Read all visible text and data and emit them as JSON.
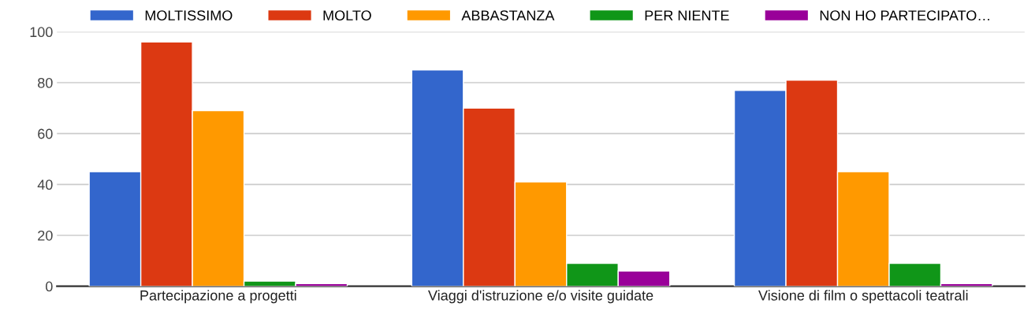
{
  "chart_data": {
    "type": "bar",
    "categories": [
      "Partecipazione a progetti",
      "Viaggi d'istruzione e/o visite guidate",
      "Visione di film o spettacoli teatrali"
    ],
    "series": [
      {
        "name": "MOLTISSIMO",
        "color": "#3366cc",
        "values": [
          45,
          85,
          77
        ]
      },
      {
        "name": "MOLTO",
        "color": "#dc3912",
        "values": [
          96,
          70,
          81
        ]
      },
      {
        "name": "ABBASTANZA",
        "color": "#ff9900",
        "values": [
          69,
          41,
          45
        ]
      },
      {
        "name": "PER NIENTE",
        "color": "#109618",
        "values": [
          2,
          9,
          9
        ]
      },
      {
        "name": "NON HO PARTECIPATO…",
        "color": "#990099",
        "values": [
          1,
          6,
          1
        ]
      }
    ],
    "ylim": [
      0,
      100
    ],
    "yticks": [
      0,
      20,
      40,
      60,
      80,
      100
    ],
    "grid": "y",
    "legend": "top"
  }
}
